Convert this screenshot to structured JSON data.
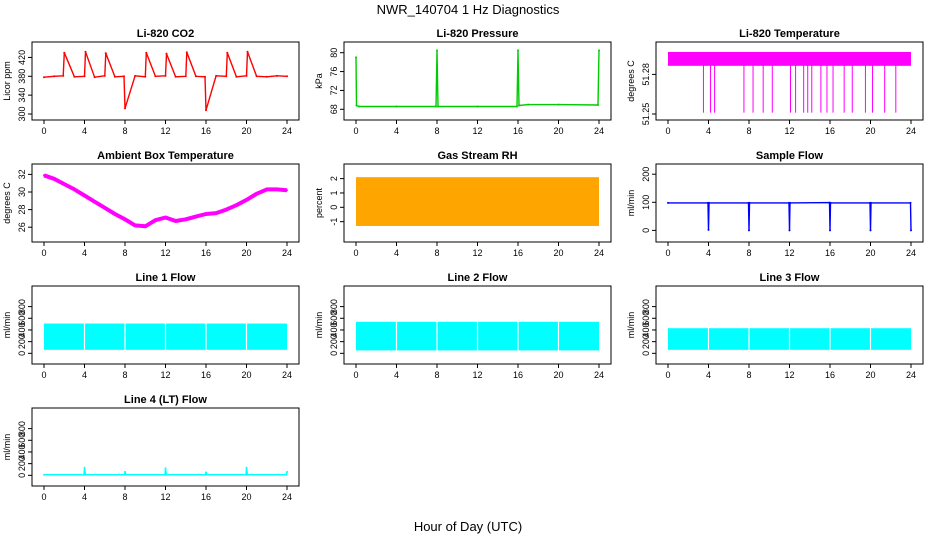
{
  "figure": {
    "title": "NWR_140704  1 Hz Diagnostics",
    "xlabel": "Hour of Day (UTC)"
  },
  "chart_data": [
    {
      "id": "co2",
      "type": "line",
      "title": "Li-820 CO2",
      "ylabel": "Licor ppm",
      "color": "#ff0000",
      "xlim": [
        0,
        24
      ],
      "ylim": [
        300,
        440
      ],
      "xticks": [
        0,
        4,
        8,
        12,
        16,
        20,
        24
      ],
      "yticks": [
        300,
        340,
        380,
        420
      ],
      "x": [
        0,
        1,
        1.9,
        2.0,
        3,
        4,
        4.1,
        5,
        6,
        6.1,
        7,
        7.9,
        8.0,
        9,
        10,
        10.1,
        11,
        12,
        12.1,
        13,
        14,
        14.1,
        15,
        15.9,
        16.0,
        17,
        18,
        18.1,
        19,
        20,
        20.1,
        21,
        22,
        23,
        24
      ],
      "y": [
        378,
        380,
        381,
        430,
        379,
        380,
        432,
        378,
        381,
        429,
        379,
        380,
        312,
        381,
        379,
        430,
        380,
        381,
        428,
        379,
        380,
        431,
        380,
        379,
        308,
        381,
        380,
        430,
        379,
        381,
        432,
        380,
        379,
        381,
        380
      ]
    },
    {
      "id": "pressure",
      "type": "line",
      "title": "Li-820 Pressure",
      "ylabel": "kPa",
      "color": "#00cc00",
      "xlim": [
        0,
        24
      ],
      "ylim": [
        67,
        81
      ],
      "xticks": [
        0,
        4,
        8,
        12,
        16,
        20,
        24
      ],
      "yticks": [
        68,
        72,
        76,
        80
      ],
      "x": [
        0,
        0.05,
        0.3,
        4,
        7.9,
        8.0,
        8.1,
        12,
        15.9,
        16.0,
        16.1,
        17,
        20,
        23.9,
        24.0
      ],
      "y": [
        79,
        68.8,
        68.6,
        68.6,
        68.6,
        80.5,
        68.6,
        68.6,
        68.6,
        80.5,
        68.8,
        69.0,
        69.0,
        68.9,
        80.5
      ]
    },
    {
      "id": "licor_temp",
      "type": "area",
      "title": "Li-820 Temperature",
      "ylabel": "degrees C",
      "color": "#ff00ff",
      "xlim": [
        0,
        24
      ],
      "ylim": [
        51.25,
        51.3
      ],
      "xticks": [
        0,
        4,
        8,
        12,
        16,
        20,
        24
      ],
      "yticks": [
        51.25,
        51.28
      ],
      "x": [
        0,
        24
      ],
      "y_low": [
        51.2865,
        51.2865
      ],
      "y_high": [
        51.297,
        51.297
      ]
    },
    {
      "id": "box_temp",
      "type": "line",
      "title": "Ambient Box Temperature",
      "ylabel": "degrees C",
      "color": "#ff00ff",
      "xlim": [
        0,
        24
      ],
      "ylim": [
        25,
        32.5
      ],
      "xticks": [
        0,
        4,
        8,
        12,
        16,
        20,
        24
      ],
      "yticks": [
        26,
        28,
        30,
        32
      ],
      "x": [
        0,
        1,
        2,
        3,
        4,
        5,
        6,
        7,
        8,
        9,
        10,
        11,
        12,
        13,
        14,
        15,
        16,
        17,
        18,
        19,
        20,
        21,
        22,
        23,
        24
      ],
      "y": [
        31.9,
        31.5,
        30.9,
        30.3,
        29.6,
        28.9,
        28.2,
        27.5,
        26.9,
        26.2,
        26.1,
        26.8,
        27.1,
        26.7,
        26.9,
        27.2,
        27.5,
        27.6,
        28.0,
        28.5,
        29.1,
        29.8,
        30.3,
        30.3,
        30.2
      ]
    },
    {
      "id": "rh",
      "type": "area",
      "title": "Gas Stream RH",
      "ylabel": "percent",
      "color": "#ffa500",
      "xlim": [
        0,
        24
      ],
      "ylim": [
        -2,
        2.6
      ],
      "xticks": [
        0,
        4,
        8,
        12,
        16,
        20,
        24
      ],
      "yticks": [
        -1,
        0,
        1,
        2
      ],
      "x": [
        0,
        24
      ],
      "y_low": [
        -1.3,
        -1.3
      ],
      "y_high": [
        2.1,
        2.1
      ]
    },
    {
      "id": "sample_flow",
      "type": "line",
      "title": "Sample Flow",
      "ylabel": "ml/min",
      "color": "#0000ff",
      "xlim": [
        0,
        24
      ],
      "ylim": [
        -20,
        215
      ],
      "xticks": [
        0,
        4,
        8,
        12,
        16,
        20,
        24
      ],
      "yticks": [
        0,
        100,
        200
      ],
      "x": [
        0,
        3.95,
        4.0,
        4.05,
        7.95,
        8.0,
        8.05,
        11.95,
        12.0,
        12.05,
        15.95,
        16.0,
        16.05,
        19.95,
        20.0,
        20.05,
        23.95,
        24.0
      ],
      "y": [
        98,
        98,
        2,
        98,
        98,
        0,
        98,
        98,
        0,
        98,
        99,
        0,
        98,
        98,
        0,
        98,
        98,
        0
      ]
    },
    {
      "id": "line1",
      "type": "area",
      "title": "Line 1 Flow",
      "ylabel": "ml/min",
      "color": "#00ffff",
      "xlim": [
        0,
        24
      ],
      "ylim": [
        -80,
        1050
      ],
      "xticks": [
        0,
        4,
        8,
        12,
        16,
        20,
        24
      ],
      "yticks": [
        0,
        200,
        400,
        600,
        800
      ],
      "x": [
        0,
        24
      ],
      "y_low": [
        60,
        60
      ],
      "y_high": [
        510,
        510
      ]
    },
    {
      "id": "line2",
      "type": "area",
      "title": "Line 2 Flow",
      "ylabel": "ml/min",
      "color": "#00ffff",
      "xlim": [
        0,
        24
      ],
      "ylim": [
        -80,
        1050
      ],
      "xticks": [
        0,
        4,
        8,
        12,
        16,
        20,
        24
      ],
      "yticks": [
        0,
        200,
        400,
        600,
        800
      ],
      "x": [
        0,
        24
      ],
      "y_low": [
        50,
        50
      ],
      "y_high": [
        540,
        540
      ]
    },
    {
      "id": "line3",
      "type": "area",
      "title": "Line 3 Flow",
      "ylabel": "ml/min",
      "color": "#00ffff",
      "xlim": [
        0,
        24
      ],
      "ylim": [
        -80,
        1050
      ],
      "xticks": [
        0,
        4,
        8,
        12,
        16,
        20,
        24
      ],
      "yticks": [
        0,
        200,
        400,
        600,
        800
      ],
      "x": [
        0,
        24
      ],
      "y_low": [
        60,
        60
      ],
      "y_high": [
        430,
        430
      ]
    },
    {
      "id": "line4",
      "type": "line",
      "title": "Line 4 (LT) Flow",
      "ylabel": "ml/min",
      "color": "#00ffff",
      "xlim": [
        0,
        24
      ],
      "ylim": [
        -80,
        1050
      ],
      "xticks": [
        0,
        4,
        8,
        12,
        16,
        20,
        24
      ],
      "yticks": [
        0,
        200,
        400,
        600,
        800
      ],
      "x": [
        0,
        3.95,
        4.0,
        4.1,
        7.95,
        8.0,
        8.1,
        11.95,
        12.0,
        12.1,
        15.95,
        16.0,
        16.1,
        19.95,
        20.0,
        20.1,
        23.95,
        24.0
      ],
      "y": [
        10,
        10,
        130,
        10,
        10,
        60,
        10,
        10,
        120,
        10,
        10,
        50,
        10,
        10,
        130,
        10,
        10,
        60
      ]
    }
  ]
}
